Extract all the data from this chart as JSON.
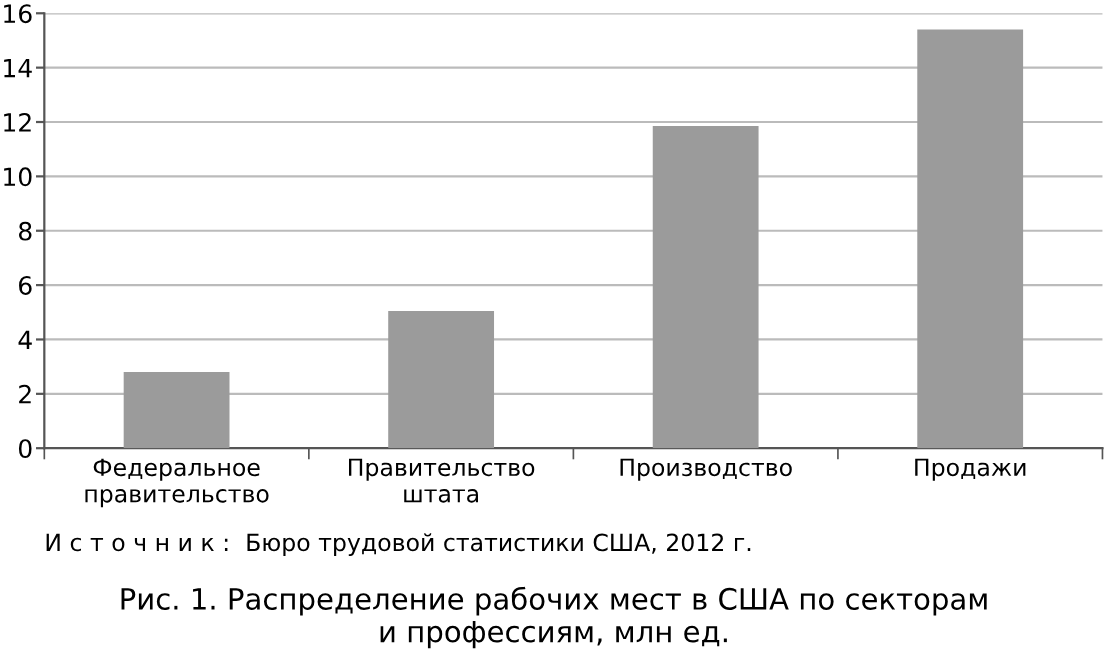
{
  "chart_data": {
    "type": "bar",
    "title": "Рис. 1. Распределение рабочих мест в США по секторам\nи профессиям, млн ед.",
    "categories": [
      "Федеральное\nправительство",
      "Правительство\nштата",
      "Производство",
      "Продажи"
    ],
    "values": [
      2.8,
      5.05,
      11.85,
      15.4
    ],
    "color": "#9b9b9b",
    "ylim": [
      0,
      16
    ],
    "yticks": [
      0,
      2,
      4,
      6,
      8,
      10,
      12,
      14,
      16
    ],
    "grid": "y",
    "annotations": [
      "И с т о ч н и к :  Бюро трудовой статистики США, 2012 г."
    ]
  }
}
